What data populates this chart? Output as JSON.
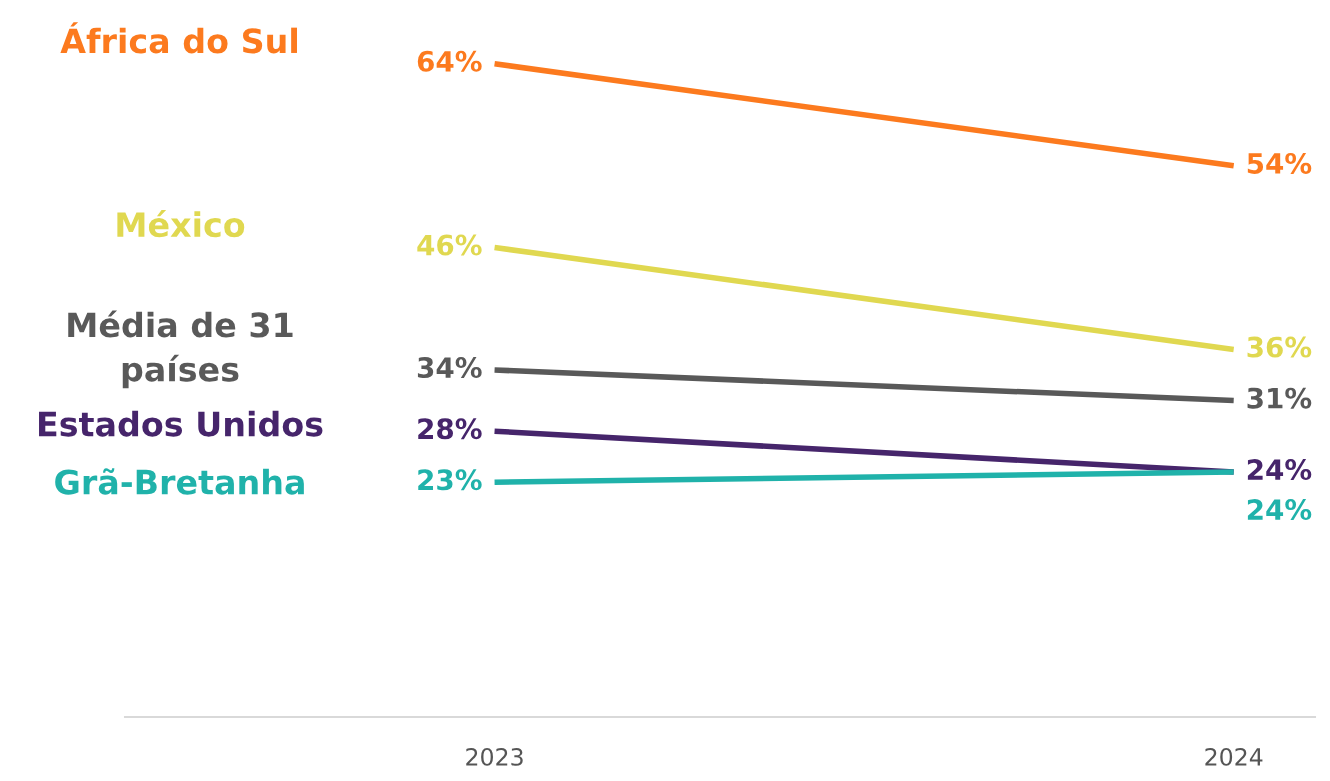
{
  "chart_data": {
    "type": "line",
    "categories": [
      "2023",
      "2024"
    ],
    "tick_labels": "x",
    "legend": false,
    "grid": false,
    "marker": "none",
    "line_style": "solid",
    "series": [
      {
        "name": "África do Sul",
        "color": "#fc7a1e",
        "values": [
          64,
          54
        ],
        "value_labels": [
          "64%",
          "54%"
        ]
      },
      {
        "name": "México",
        "color": "#e0d850",
        "values": [
          46,
          36
        ],
        "value_labels": [
          "46%",
          "36%"
        ]
      },
      {
        "name": "Média de 31\npaíses",
        "color": "#595959",
        "values": [
          34,
          31
        ],
        "value_labels": [
          "34%",
          "31%"
        ]
      },
      {
        "name": "Estados Unidos",
        "color": "#46256b",
        "values": [
          28,
          24
        ],
        "value_labels": [
          "28%",
          "24%"
        ]
      },
      {
        "name": "Grã-Bretanha",
        "color": "#20b2aa",
        "values": [
          23,
          24
        ],
        "value_labels": [
          "23%",
          "24%"
        ]
      }
    ]
  }
}
